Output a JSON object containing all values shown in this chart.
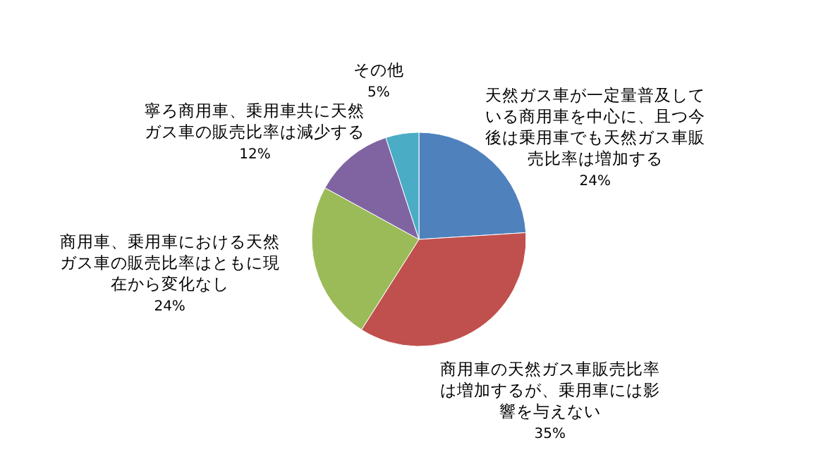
{
  "chart_data": {
    "type": "pie",
    "categories": [
      "天然ガス車が一定量普及している商用車を中心に、且つ今後は乗用車でも天然ガス車販売比率は増加する",
      "商用車の天然ガス車販売比率は増加するが、乗用車には影響を与えない",
      "商用車、乗用車における天然ガス車の販売比率はともに現在から変化なし",
      "寧ろ商用車、乗用車共に天然ガス車の販売比率は減少する",
      "その他"
    ],
    "values": [
      24,
      35,
      24,
      12,
      5
    ],
    "colors": [
      "#4f81bd",
      "#c0504d",
      "#9bbb59",
      "#8064a2",
      "#4bacc6"
    ],
    "value_labels": [
      "24%",
      "35%",
      "24%",
      "12%",
      "5%"
    ],
    "legend": false
  }
}
